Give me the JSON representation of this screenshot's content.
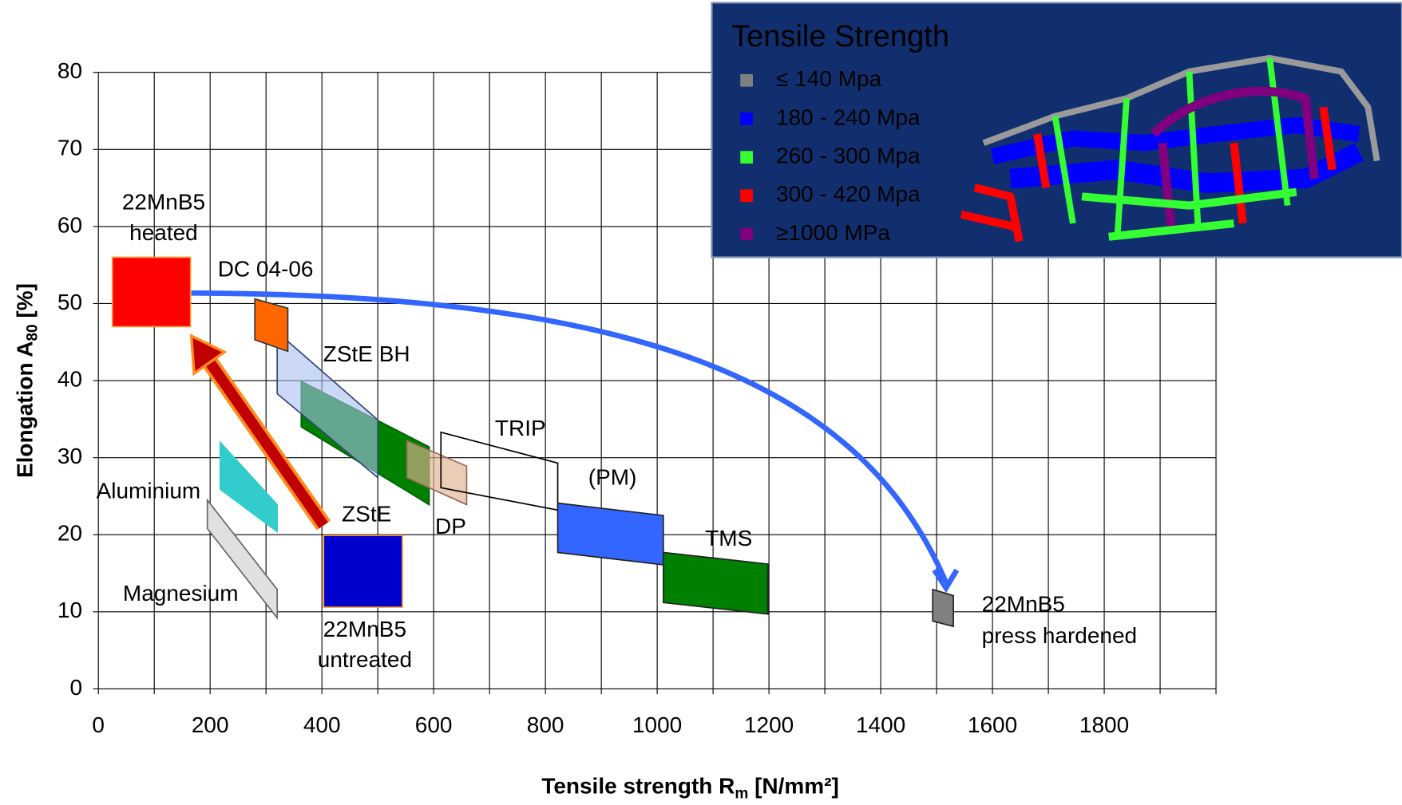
{
  "chart_data": {
    "type": "region",
    "y_label": {
      "main": "Elongation A",
      "sub": "80",
      "end": " [%]"
    },
    "x_label": {
      "main": "Tensile strength R",
      "sub": "m",
      "end": " [N/mm²]"
    },
    "xlim": [
      0,
      2000
    ],
    "ylim": [
      0,
      80
    ],
    "xticks": [
      0,
      200,
      400,
      600,
      800,
      1000,
      1200,
      1400,
      1600,
      1800
    ],
    "xgrid": [
      0,
      100,
      200,
      300,
      400,
      500,
      600,
      700,
      800,
      900,
      1000,
      1100,
      1200,
      1300,
      1400,
      1500,
      1600,
      1700,
      1800,
      1900,
      2000
    ],
    "yticks": [
      0,
      10,
      20,
      30,
      40,
      50,
      60,
      70,
      80
    ],
    "grid": true,
    "regions": [
      {
        "label": [
          "Magnesium"
        ],
        "color": "#e0e0e0",
        "stroke": "#666666",
        "points": [
          [
            195,
            24.5
          ],
          [
            320,
            12.9
          ],
          [
            320,
            9.2
          ],
          [
            195,
            20.8
          ]
        ]
      },
      {
        "label": [
          "Aluminium"
        ],
        "color": "#33cccc",
        "stroke": "#33cccc",
        "points": [
          [
            218,
            32
          ],
          [
            320,
            23.9
          ],
          [
            320,
            20.4
          ],
          [
            218,
            25.9
          ]
        ]
      },
      {
        "label": [
          "ZStE"
        ],
        "color": "#008000",
        "stroke": "#006000",
        "points": [
          [
            363,
            39.9
          ],
          [
            592,
            31.4
          ],
          [
            592,
            23.9
          ],
          [
            363,
            34
          ]
        ]
      },
      {
        "label": [
          "ZStE BH"
        ],
        "color": "#a8c0f0",
        "stroke": "#334477",
        "opacity": 0.6,
        "points": [
          [
            320,
            46.3
          ],
          [
            500,
            34.9
          ],
          [
            500,
            27.4
          ],
          [
            320,
            38.3
          ]
        ]
      },
      {
        "label": [
          "DP"
        ],
        "color": "#e0b090",
        "stroke": "#996655",
        "opacity": 0.65,
        "points": [
          [
            552,
            32.2
          ],
          [
            659,
            28.9
          ],
          [
            659,
            23.9
          ],
          [
            552,
            27.4
          ]
        ]
      },
      {
        "label": [
          "TRIP"
        ],
        "color": "none",
        "stroke": "#000000",
        "points": [
          [
            613,
            33.3
          ],
          [
            822,
            29.3
          ],
          [
            822,
            23.2
          ],
          [
            613,
            26.1
          ]
        ]
      },
      {
        "label": [
          "(PM)"
        ],
        "color": "#3366ff",
        "stroke": "#222222",
        "points": [
          [
            822,
            24.1
          ],
          [
            1011,
            22.5
          ],
          [
            1011,
            16.1
          ],
          [
            822,
            17.7
          ]
        ]
      },
      {
        "label": [
          "TMS"
        ],
        "color": "#008000",
        "stroke": "#222222",
        "points": [
          [
            1011,
            17.7
          ],
          [
            1198,
            16.2
          ],
          [
            1198,
            9.7
          ],
          [
            1011,
            11.2
          ]
        ]
      },
      {
        "label": [
          "22MnB5",
          "press hardened"
        ],
        "color": "#808080",
        "stroke": "#222222",
        "points": [
          [
            1493,
            12.9
          ],
          [
            1530,
            12.1
          ],
          [
            1530,
            8.1
          ],
          [
            1493,
            8.8
          ]
        ]
      },
      {
        "label": [
          "DC 04-06"
        ],
        "color": "#ff6600",
        "stroke": "#333333",
        "points": [
          [
            280,
            50.6
          ],
          [
            339,
            49.4
          ],
          [
            339,
            43.8
          ],
          [
            280,
            45.3
          ]
        ]
      },
      {
        "label": [
          "22MnB5",
          "heated"
        ],
        "color": "#ff0000",
        "stroke": "#ff9933",
        "points": [
          [
            25,
            56
          ],
          [
            165,
            56
          ],
          [
            165,
            47
          ],
          [
            25,
            47
          ]
        ]
      },
      {
        "label": [
          "22MnB5",
          "untreated"
        ],
        "color": "#0000cc",
        "stroke": "#ff9933",
        "points": [
          [
            403,
            19.9
          ],
          [
            544,
            19.9
          ],
          [
            544,
            10.6
          ],
          [
            403,
            10.6
          ]
        ]
      }
    ],
    "legend": {
      "title": "Tensile Strength",
      "items": [
        {
          "name": "≤ 140 Mpa",
          "color": "#808080"
        },
        {
          "name": "180 - 240 Mpa",
          "color": "#0000ff"
        },
        {
          "name": "260 - 300 Mpa",
          "color": "#33ff33"
        },
        {
          "name": "300 - 420 Mpa",
          "color": "#ff0000"
        },
        {
          "name": "≥1000 MPa",
          "color": "#800080"
        }
      ]
    }
  }
}
